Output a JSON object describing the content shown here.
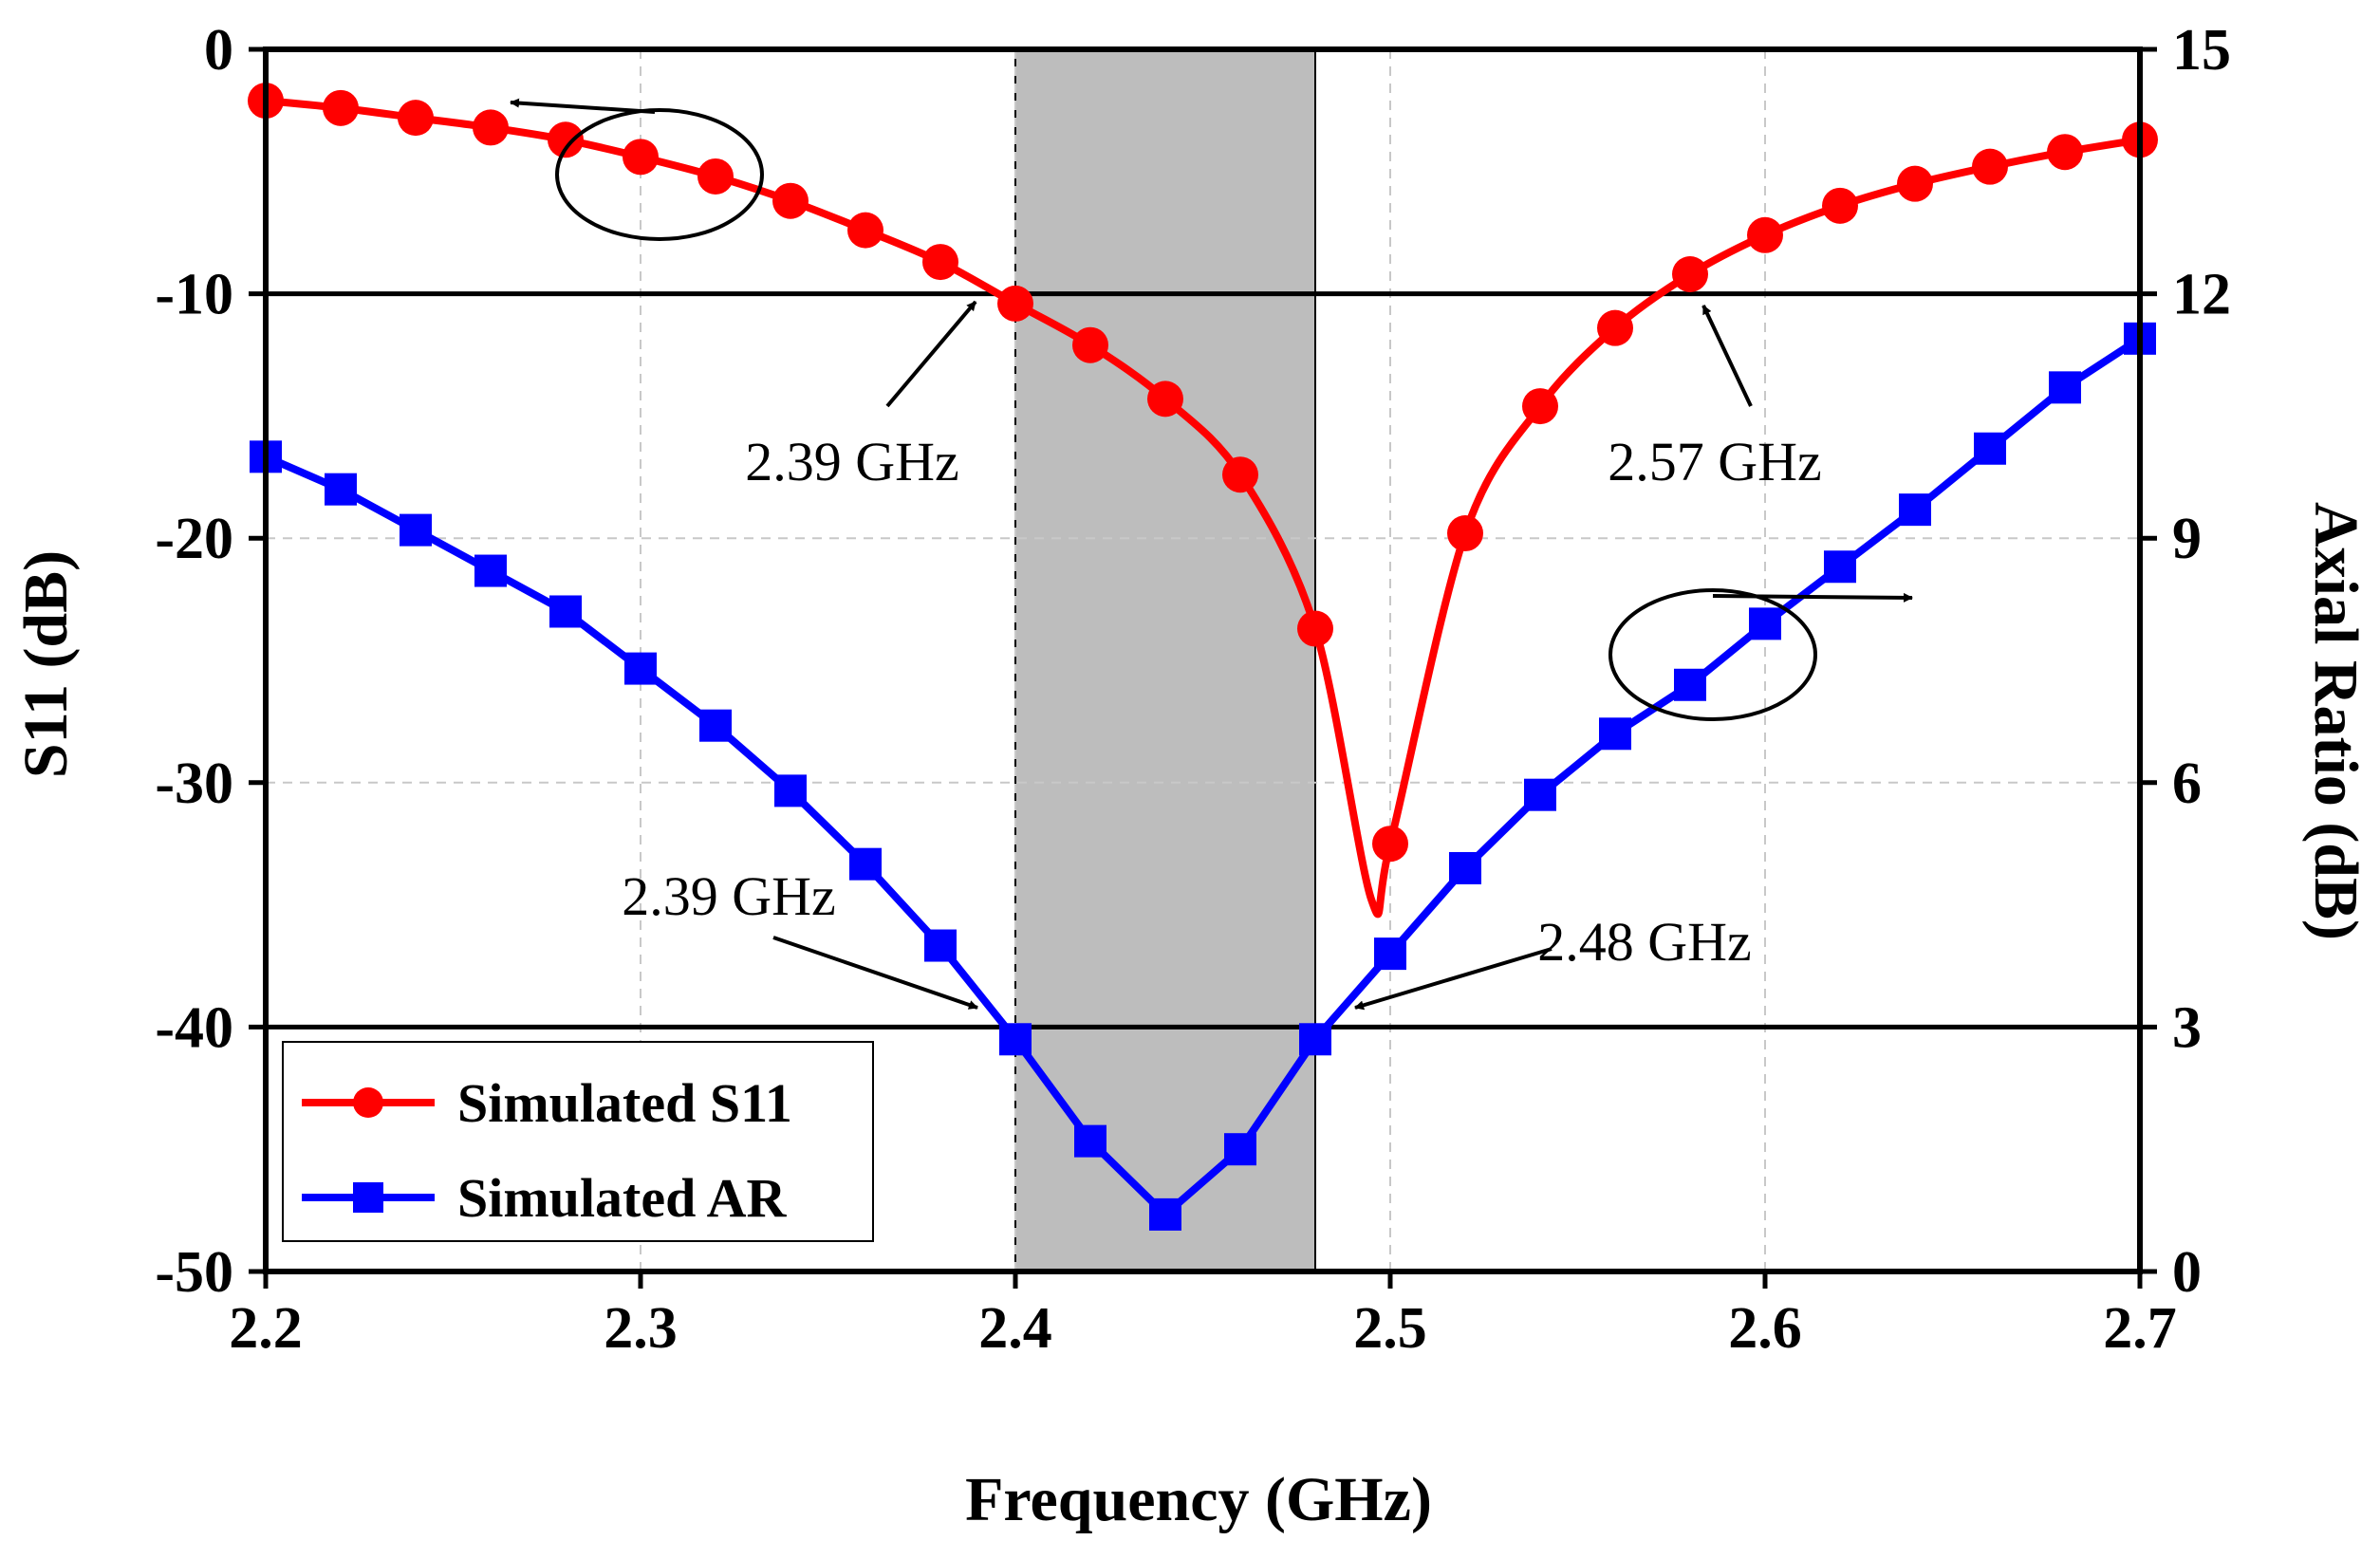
{
  "chart_data": {
    "type": "line",
    "xlabel": "Frequency (GHz)",
    "ylabel": "S11 (dB)",
    "y2label": "Axial Ratio (dB)",
    "xlim": [
      2.2,
      2.7
    ],
    "ylim": [
      -50,
      0
    ],
    "y2lim": [
      0,
      15
    ],
    "x_ticks": [
      "2.2",
      "2.3",
      "2.4",
      "2.5",
      "2.6",
      "2.7"
    ],
    "y_ticks": [
      "0",
      "-10",
      "-20",
      "-30",
      "-40",
      "-50"
    ],
    "y2_ticks": [
      "15",
      "12",
      "9",
      "6",
      "3",
      "0"
    ],
    "grid": true,
    "shaded_band": [
      2.4,
      2.48
    ],
    "reference_lines": [
      {
        "axis": "left",
        "value": -10
      },
      {
        "axis": "right",
        "value": 3
      }
    ],
    "legend_position": "bottom-left",
    "series": [
      {
        "name": "Simulated S11",
        "axis": "left",
        "color": "#ff0000",
        "marker": "circle",
        "x": [
          2.2,
          2.22,
          2.24,
          2.26,
          2.28,
          2.3,
          2.32,
          2.34,
          2.36,
          2.38,
          2.4,
          2.42,
          2.44,
          2.46,
          2.48,
          2.5,
          2.52,
          2.54,
          2.56,
          2.58,
          2.6,
          2.62,
          2.64,
          2.66,
          2.68,
          2.7
        ],
        "values": [
          -2.1,
          -2.4,
          -2.8,
          -3.2,
          -3.7,
          -4.4,
          -5.2,
          -6.2,
          -7.4,
          -8.7,
          -10.4,
          -12.1,
          -14.3,
          -17.4,
          -23.7,
          -32.5,
          -19.8,
          -14.6,
          -11.4,
          -9.2,
          -7.6,
          -6.4,
          -5.5,
          -4.8,
          -4.2,
          -3.7
        ],
        "minimum": {
          "x": 2.495,
          "value": -34.8
        }
      },
      {
        "name": "Simulated AR",
        "axis": "right",
        "color": "#0000ff",
        "marker": "square",
        "x": [
          2.2,
          2.22,
          2.24,
          2.26,
          2.28,
          2.3,
          2.32,
          2.34,
          2.36,
          2.38,
          2.4,
          2.42,
          2.44,
          2.46,
          2.48,
          2.5,
          2.52,
          2.54,
          2.56,
          2.58,
          2.6,
          2.62,
          2.64,
          2.66,
          2.68,
          2.7
        ],
        "values": [
          10.0,
          9.6,
          9.1,
          8.6,
          8.1,
          7.4,
          6.7,
          5.9,
          5.0,
          4.0,
          2.85,
          1.6,
          0.7,
          1.5,
          2.85,
          3.9,
          4.95,
          5.85,
          6.6,
          7.2,
          7.95,
          8.65,
          9.35,
          10.1,
          10.85,
          11.45
        ]
      }
    ],
    "annotations": [
      {
        "text": "2.39 GHz",
        "series": "Simulated S11"
      },
      {
        "text": "2.57 GHz",
        "series": "Simulated S11"
      },
      {
        "text": "2.39 GHz",
        "series": "Simulated AR"
      },
      {
        "text": "2.48 GHz",
        "series": "Simulated AR"
      }
    ]
  }
}
